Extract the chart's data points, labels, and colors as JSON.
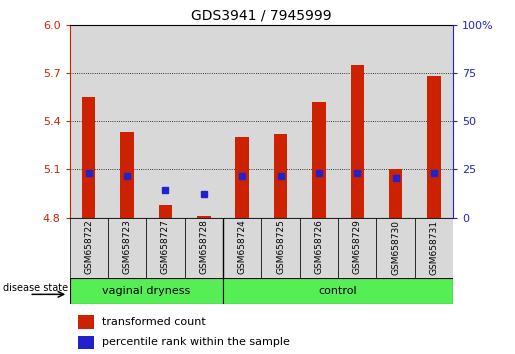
{
  "title": "GDS3941 / 7945999",
  "samples": [
    "GSM658722",
    "GSM658723",
    "GSM658727",
    "GSM658728",
    "GSM658724",
    "GSM658725",
    "GSM658726",
    "GSM658729",
    "GSM658730",
    "GSM658731"
  ],
  "red_values": [
    5.55,
    5.33,
    4.88,
    4.81,
    5.3,
    5.32,
    5.52,
    5.75,
    5.1,
    5.68
  ],
  "blue_values": [
    5.08,
    5.06,
    4.97,
    4.95,
    5.06,
    5.06,
    5.08,
    5.08,
    5.05,
    5.08
  ],
  "ymin": 4.8,
  "ymax": 6.0,
  "yticks_left": [
    4.8,
    5.1,
    5.4,
    5.7,
    6.0
  ],
  "yticks_right_pct": [
    0,
    25,
    50,
    75,
    100
  ],
  "group1_label": "vaginal dryness",
  "group1_count": 4,
  "group2_label": "control",
  "group2_count": 6,
  "disease_label": "disease state",
  "bar_bottom": 4.8,
  "red_color": "#cc2200",
  "blue_color": "#2222cc",
  "col_bg_color": "#d8d8d8",
  "green_color": "#55ee55",
  "legend_red": "transformed count",
  "legend_blue": "percentile rank within the sample"
}
